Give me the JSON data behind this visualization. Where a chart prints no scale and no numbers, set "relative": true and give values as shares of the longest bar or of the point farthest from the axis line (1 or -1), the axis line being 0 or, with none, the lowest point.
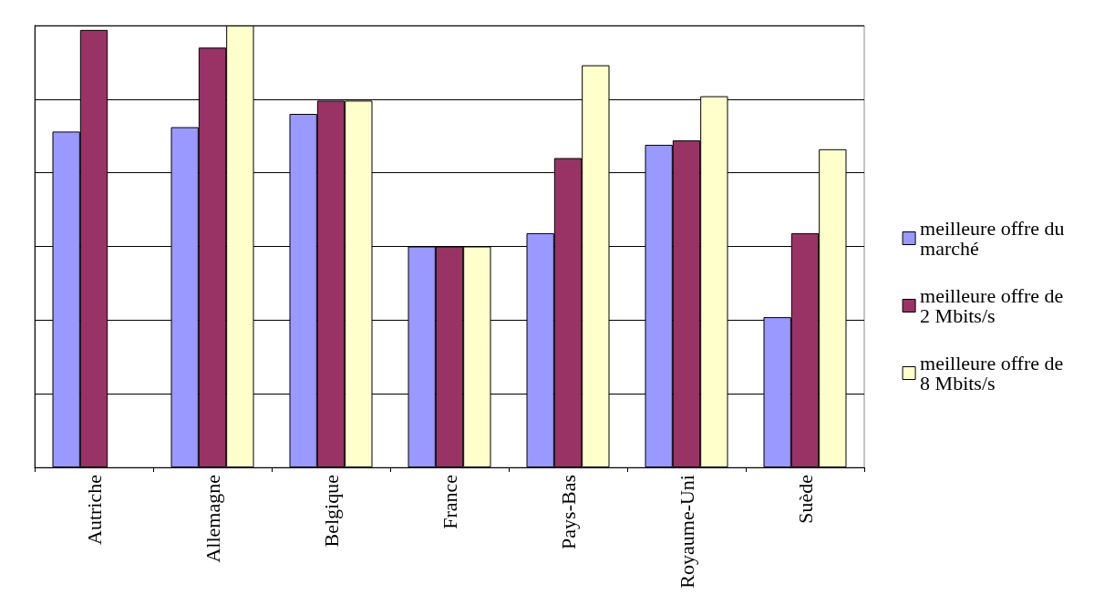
{
  "chart_data": {
    "type": "bar",
    "relative": true,
    "grid": "y",
    "legend": "right",
    "categories": [
      "Autriche",
      "Allemagne",
      "Belgique",
      "France",
      "Pays-Bas",
      "Royaume-Uni",
      "Suède"
    ],
    "series": [
      {
        "name": "meilleure offre du marché",
        "color": "#9999ff",
        "values": [
          0.76,
          0.77,
          0.8,
          0.5,
          0.53,
          0.73,
          0.34
        ]
      },
      {
        "name": "meilleure offre de 2 Mbits/s",
        "color": "#993366",
        "values": [
          0.99,
          0.95,
          0.83,
          0.5,
          0.7,
          0.74,
          0.53
        ]
      },
      {
        "name": "meilleure offre de 8 Mbits/s",
        "color": "#ffffcc",
        "values": [
          null,
          1,
          0.83,
          0.5,
          0.91,
          0.84,
          0.72
        ]
      }
    ]
  }
}
